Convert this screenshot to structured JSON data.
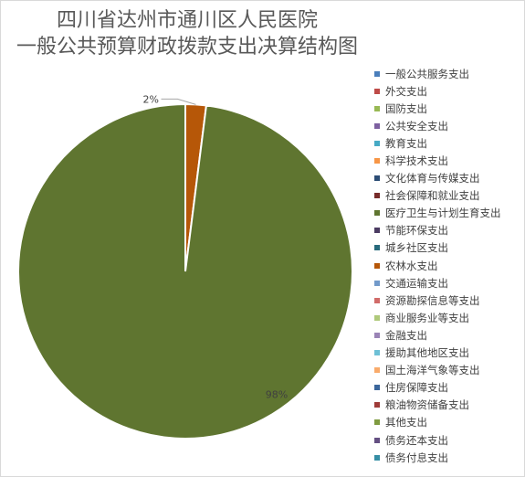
{
  "chart_data": {
    "type": "pie",
    "title_line1": "四川省达州市通川区人民医院",
    "title_line2": "一般公共预算财政拨款支出决算结构图",
    "categories": [
      "一般公共服务支出",
      "外交支出",
      "国防支出",
      "公共安全支出",
      "教育支出",
      "科学技术支出",
      "文化体育与传媒支出",
      "社会保障和就业支出",
      "医疗卫生与计划生育支出",
      "节能环保支出",
      "城乡社区支出",
      "农林水支出",
      "交通运输支出",
      "资源勘探信息等支出",
      "商业服务业等支出",
      "金融支出",
      "援助其他地区支出",
      "国土海洋气象等支出",
      "住房保障支出",
      "粮油物资储备支出",
      "其他支出",
      "债务还本支出",
      "债务付息支出"
    ],
    "values": [
      0,
      0,
      0,
      0,
      0,
      0,
      0,
      0,
      98,
      0,
      0,
      2,
      0,
      0,
      0,
      0,
      0,
      0,
      0,
      0,
      0,
      0,
      0
    ],
    "data_labels": [
      "",
      "",
      "",
      "",
      "",
      "",
      "",
      "",
      "98%",
      "",
      "",
      "2%",
      "",
      "",
      "",
      "",
      "",
      "",
      "",
      "",
      "",
      "",
      ""
    ],
    "colors": [
      "#4a7ebb",
      "#be4b48",
      "#98b954",
      "#7d60a0",
      "#46aac5",
      "#f79646",
      "#2c4d75",
      "#772c2a",
      "#5f7530",
      "#4b3b62",
      "#276a7c",
      "#b65708",
      "#729aca",
      "#d16b69",
      "#afc97a",
      "#9a84b6",
      "#6ec0d6",
      "#f9ab6b",
      "#3a669b",
      "#9f3b38",
      "#7f9b40",
      "#644f82",
      "#358ea5"
    ],
    "legend_position": "right"
  }
}
